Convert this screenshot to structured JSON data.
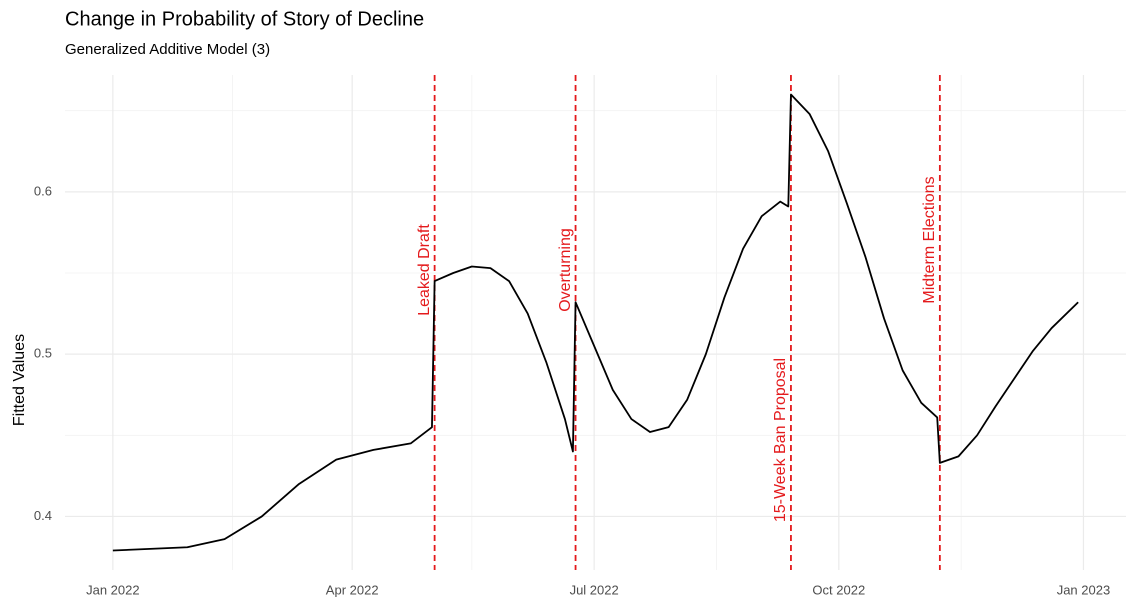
{
  "chart_data": {
    "type": "line",
    "title": "Change in Probability of Story of Decline",
    "subtitle": "Generalized Additive Model (3)",
    "ylabel": "Fitted Values",
    "x": [
      "2022-01-01",
      "2022-01-15",
      "2022-01-29",
      "2022-02-12",
      "2022-02-26",
      "2022-03-12",
      "2022-03-26",
      "2022-04-09",
      "2022-04-23",
      "2022-05-01",
      "2022-05-02",
      "2022-05-09",
      "2022-05-16",
      "2022-05-23",
      "2022-05-30",
      "2022-06-06",
      "2022-06-13",
      "2022-06-20",
      "2022-06-23",
      "2022-06-24",
      "2022-07-01",
      "2022-07-08",
      "2022-07-15",
      "2022-07-22",
      "2022-07-29",
      "2022-08-05",
      "2022-08-12",
      "2022-08-19",
      "2022-08-26",
      "2022-09-02",
      "2022-09-09",
      "2022-09-12",
      "2022-09-13",
      "2022-09-20",
      "2022-09-27",
      "2022-10-04",
      "2022-10-11",
      "2022-10-18",
      "2022-10-25",
      "2022-11-01",
      "2022-11-07",
      "2022-11-08",
      "2022-11-15",
      "2022-11-22",
      "2022-11-29",
      "2022-12-06",
      "2022-12-13",
      "2022-12-20",
      "2022-12-30"
    ],
    "series": [
      {
        "name": "Fitted Values",
        "color": "#000000",
        "values": [
          0.379,
          0.38,
          0.381,
          0.386,
          0.4,
          0.42,
          0.435,
          0.441,
          0.445,
          0.455,
          0.545,
          0.55,
          0.554,
          0.553,
          0.545,
          0.525,
          0.495,
          0.46,
          0.44,
          0.532,
          0.505,
          0.478,
          0.46,
          0.452,
          0.455,
          0.472,
          0.5,
          0.535,
          0.565,
          0.585,
          0.594,
          0.591,
          0.66,
          0.648,
          0.625,
          0.593,
          0.56,
          0.522,
          0.49,
          0.47,
          0.461,
          0.433,
          0.437,
          0.45,
          0.468,
          0.485,
          0.502,
          0.516,
          0.532
        ]
      }
    ],
    "annotations": [
      {
        "x": "2022-05-02",
        "label": "Leaked Draft",
        "color": "#e41a1c"
      },
      {
        "x": "2022-06-24",
        "label": "Overturning",
        "color": "#e41a1c"
      },
      {
        "x": "2022-09-13",
        "label": "15-Week Ban Proposal",
        "color": "#e41a1c"
      },
      {
        "x": "2022-11-08",
        "label": "Midterm Elections",
        "color": "#e41a1c"
      }
    ],
    "xlim": [
      "2021-12-14",
      "2023-01-17"
    ],
    "xticks": [
      {
        "value": "2022-01-01",
        "label": "Jan 2022"
      },
      {
        "value": "2022-04-01",
        "label": "Apr 2022"
      },
      {
        "value": "2022-07-01",
        "label": "Jul 2022"
      },
      {
        "value": "2022-10-01",
        "label": "Oct 2022"
      },
      {
        "value": "2023-01-01",
        "label": "Jan 2023"
      }
    ],
    "xticks_minor": [
      "2022-02-15",
      "2022-05-16",
      "2022-08-16",
      "2022-11-16"
    ],
    "ylim": [
      0.367,
      0.672
    ],
    "yticks": [
      0.4,
      0.5,
      0.6
    ],
    "yticks_minor": [
      0.45,
      0.55,
      0.65
    ],
    "grid": true
  }
}
